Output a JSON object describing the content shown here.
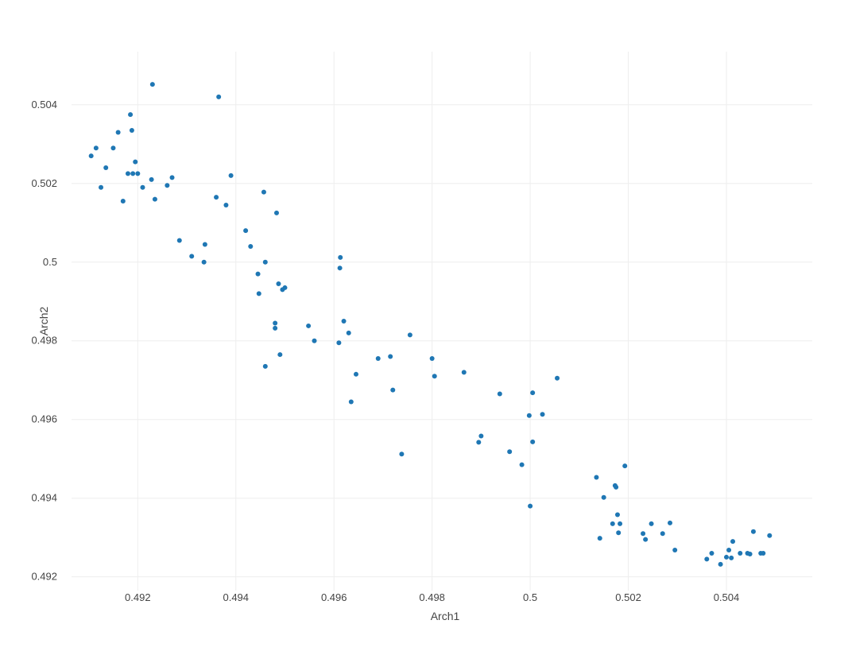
{
  "chart_data": {
    "type": "scatter",
    "title": "",
    "xlabel": "Arch1",
    "ylabel": "Arch2",
    "xlim": [
      0.49065,
      0.50575
    ],
    "ylim": [
      0.49165,
      0.50535
    ],
    "xticks": [
      0.492,
      0.494,
      0.496,
      0.498,
      0.5,
      0.502,
      0.504
    ],
    "xtick_labels": [
      "0.492",
      "0.494",
      "0.496",
      "0.498",
      "0.5",
      "0.502",
      "0.504"
    ],
    "yticks": [
      0.492,
      0.494,
      0.496,
      0.498,
      0.5,
      0.502,
      0.504
    ],
    "ytick_labels": [
      "0.492",
      "0.494",
      "0.496",
      "0.498",
      "0.5",
      "0.502",
      "0.504"
    ],
    "grid": true,
    "legend": "none",
    "marker_color": "#1f77b4",
    "series": [
      {
        "x": [
          0.49105,
          0.49115,
          0.49125,
          0.49135,
          0.4915,
          0.4916,
          0.4917,
          0.4918,
          0.49185,
          0.49188,
          0.4919,
          0.49195,
          0.492,
          0.4921,
          0.49228,
          0.4923,
          0.49235,
          0.4926,
          0.4927,
          0.49285,
          0.4931,
          0.49335,
          0.49337,
          0.4936,
          0.49365,
          0.4938,
          0.4939,
          0.4942,
          0.4943,
          0.49445,
          0.49447,
          0.49457,
          0.4946,
          0.4946,
          0.4948,
          0.4948,
          0.49483,
          0.49487,
          0.4949,
          0.49495,
          0.495,
          0.49548,
          0.4956,
          0.4961,
          0.49612,
          0.49613,
          0.4962,
          0.4963,
          0.49635,
          0.49645,
          0.4969,
          0.49715,
          0.4972,
          0.49738,
          0.49755,
          0.498,
          0.49805,
          0.49865,
          0.49895,
          0.499,
          0.49938,
          0.49958,
          0.49983,
          0.49998,
          0.5,
          0.50005,
          0.50005,
          0.50025,
          0.50055,
          0.50135,
          0.50142,
          0.5015,
          0.50168,
          0.50173,
          0.50175,
          0.50178,
          0.5018,
          0.50183,
          0.50193,
          0.5023,
          0.50235,
          0.50247,
          0.5027,
          0.50285,
          0.50295,
          0.5036,
          0.5037,
          0.50388,
          0.504,
          0.50405,
          0.5041,
          0.50413,
          0.50428,
          0.50443,
          0.50448,
          0.50455,
          0.5047,
          0.50475,
          0.50488
        ],
        "y": [
          0.5027,
          0.5029,
          0.5019,
          0.5024,
          0.5029,
          0.5033,
          0.50155,
          0.50225,
          0.50375,
          0.50335,
          0.50225,
          0.50255,
          0.50225,
          0.5019,
          0.5021,
          0.50452,
          0.5016,
          0.50195,
          0.50215,
          0.50055,
          0.50015,
          0.5,
          0.50045,
          0.50165,
          0.5042,
          0.50145,
          0.5022,
          0.5008,
          0.5004,
          0.4997,
          0.4992,
          0.50178,
          0.5,
          0.49735,
          0.49845,
          0.49832,
          0.50125,
          0.49945,
          0.49765,
          0.4993,
          0.49935,
          0.49838,
          0.498,
          0.49795,
          0.49985,
          0.50012,
          0.4985,
          0.4982,
          0.49645,
          0.49715,
          0.49755,
          0.4976,
          0.49675,
          0.49512,
          0.49815,
          0.49755,
          0.4971,
          0.4972,
          0.49542,
          0.49558,
          0.49665,
          0.49518,
          0.49485,
          0.4961,
          0.4938,
          0.49543,
          0.49668,
          0.49613,
          0.49705,
          0.49453,
          0.49298,
          0.49402,
          0.49335,
          0.49432,
          0.49428,
          0.49358,
          0.49312,
          0.49335,
          0.49482,
          0.4931,
          0.49295,
          0.49335,
          0.4931,
          0.49337,
          0.49268,
          0.49245,
          0.4926,
          0.49232,
          0.4925,
          0.49268,
          0.49248,
          0.4929,
          0.4926,
          0.4926,
          0.49258,
          0.49315,
          0.4926,
          0.4926,
          0.49305
        ]
      }
    ]
  }
}
